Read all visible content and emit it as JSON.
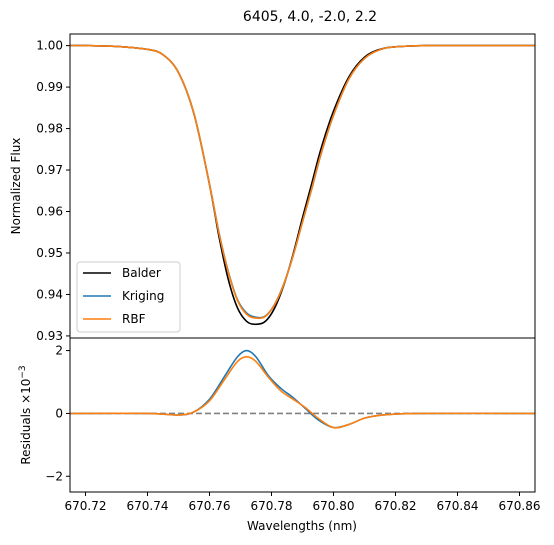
{
  "chart_data": {
    "type": "line",
    "title": "6405, 4.0, -2.0, 2.2",
    "xlabel": "Wavelengths (nm)",
    "xlim": [
      670.715,
      670.865
    ],
    "x_ticks": [
      670.72,
      670.74,
      670.76,
      670.78,
      670.8,
      670.82,
      670.84,
      670.86
    ],
    "x_tick_labels": [
      "670.72",
      "670.74",
      "670.76",
      "670.78",
      "670.80",
      "670.82",
      "670.84",
      "670.86"
    ],
    "legend_position": "lower-left",
    "top_panel": {
      "ylabel": "Normalized Flux",
      "ylim": [
        0.9295,
        1.0028
      ],
      "y_ticks": [
        0.93,
        0.94,
        0.95,
        0.96,
        0.97,
        0.98,
        0.99,
        1.0
      ],
      "y_tick_labels": [
        "0.93",
        "0.94",
        "0.95",
        "0.96",
        "0.97",
        "0.98",
        "0.99",
        "1.00"
      ],
      "series": [
        {
          "name": "Balder",
          "color": "#000000",
          "x": [
            670.715,
            670.72,
            670.73,
            670.74,
            670.745,
            670.75,
            670.755,
            670.76,
            670.763,
            670.766,
            670.769,
            670.772,
            670.775,
            670.778,
            670.781,
            670.784,
            670.787,
            670.79,
            670.793,
            670.796,
            670.8,
            670.805,
            670.81,
            670.815,
            670.82,
            670.83,
            670.84,
            670.85,
            670.865
          ],
          "y": [
            1.0,
            1.0,
            0.9998,
            0.9991,
            0.9978,
            0.9935,
            0.9835,
            0.9665,
            0.9542,
            0.9438,
            0.9368,
            0.9335,
            0.9328,
            0.9335,
            0.9367,
            0.9423,
            0.9498,
            0.9585,
            0.9668,
            0.9752,
            0.9842,
            0.9925,
            0.9972,
            0.9991,
            0.9997,
            1.0,
            1.0,
            1.0,
            1.0
          ]
        },
        {
          "name": "Kriging",
          "color": "#1f77b4",
          "x": [
            670.715,
            670.72,
            670.73,
            670.74,
            670.745,
            670.75,
            670.755,
            670.76,
            670.763,
            670.766,
            670.769,
            670.772,
            670.775,
            670.778,
            670.781,
            670.784,
            670.787,
            670.79,
            670.793,
            670.796,
            670.8,
            670.805,
            670.81,
            670.815,
            670.82,
            670.83,
            670.84,
            670.85,
            670.865
          ],
          "y": [
            1.0,
            1.0,
            0.9998,
            0.9991,
            0.9978,
            0.9935,
            0.9836,
            0.9666,
            0.9551,
            0.9457,
            0.9388,
            0.9355,
            0.9345,
            0.9348,
            0.9376,
            0.9426,
            0.9494,
            0.9575,
            0.9655,
            0.9739,
            0.9832,
            0.992,
            0.9969,
            0.999,
            0.9997,
            1.0,
            1.0,
            1.0,
            1.0
          ]
        },
        {
          "name": "RBF",
          "color": "#ff7f0e",
          "x": [
            670.715,
            670.72,
            670.73,
            670.74,
            670.745,
            670.75,
            670.755,
            670.76,
            670.763,
            670.766,
            670.769,
            670.772,
            670.775,
            670.778,
            670.781,
            670.784,
            670.787,
            670.79,
            670.793,
            670.796,
            670.8,
            670.805,
            670.81,
            670.815,
            670.82,
            670.83,
            670.84,
            670.85,
            670.865
          ],
          "y": [
            1.0,
            1.0,
            0.9998,
            0.9991,
            0.9978,
            0.9935,
            0.9836,
            0.9666,
            0.955,
            0.9455,
            0.9386,
            0.9352,
            0.9343,
            0.9347,
            0.9375,
            0.9425,
            0.9494,
            0.9575,
            0.9656,
            0.974,
            0.9832,
            0.992,
            0.9969,
            0.999,
            0.9997,
            1.0,
            1.0,
            1.0,
            1.0
          ]
        }
      ]
    },
    "bottom_panel": {
      "ylabel": "Residuals ×10",
      "ylabel_exponent": "−3",
      "ylim": [
        -2.5,
        2.4
      ],
      "y_ticks": [
        -2,
        0,
        2
      ],
      "y_tick_labels": [
        "−2",
        "0",
        "2"
      ],
      "reference_line": {
        "y": 0,
        "color": "#808080",
        "style": "dashed"
      },
      "series": [
        {
          "name": "Kriging",
          "color": "#1f77b4",
          "x": [
            670.715,
            670.74,
            670.75,
            670.755,
            670.76,
            670.765,
            670.769,
            670.772,
            670.775,
            670.779,
            670.783,
            670.787,
            670.791,
            670.795,
            670.8,
            670.805,
            670.81,
            670.815,
            670.82,
            670.83,
            670.865
          ],
          "y": [
            0.0,
            0.0,
            -0.05,
            0.05,
            0.45,
            1.2,
            1.8,
            2.0,
            1.8,
            1.2,
            0.8,
            0.5,
            0.15,
            -0.2,
            -0.45,
            -0.35,
            -0.15,
            -0.06,
            -0.02,
            0.0,
            0.0
          ]
        },
        {
          "name": "RBF",
          "color": "#ff7f0e",
          "x": [
            670.715,
            670.74,
            670.75,
            670.755,
            670.76,
            670.765,
            670.769,
            670.772,
            670.775,
            670.779,
            670.783,
            670.787,
            670.791,
            670.795,
            670.8,
            670.805,
            670.81,
            670.815,
            670.82,
            670.83,
            670.865
          ],
          "y": [
            0.0,
            0.0,
            -0.05,
            0.05,
            0.4,
            1.1,
            1.65,
            1.8,
            1.65,
            1.15,
            0.72,
            0.45,
            0.18,
            -0.15,
            -0.45,
            -0.35,
            -0.15,
            -0.06,
            -0.02,
            0.0,
            0.0
          ]
        }
      ]
    },
    "legend": [
      {
        "name": "Balder",
        "color": "#000000"
      },
      {
        "name": "Kriging",
        "color": "#1f77b4"
      },
      {
        "name": "RBF",
        "color": "#ff7f0e"
      }
    ]
  }
}
